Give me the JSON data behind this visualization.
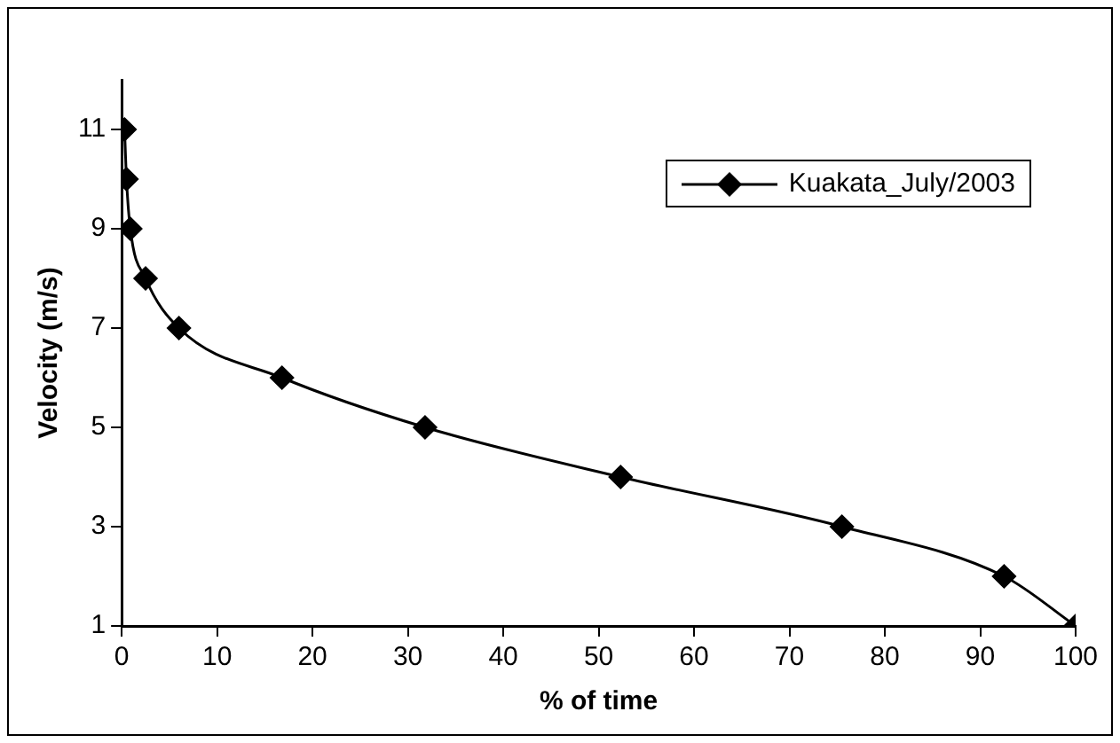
{
  "chart_data": {
    "type": "line",
    "xlabel": "% of time",
    "ylabel": "Velocity (m/s)",
    "x": [
      0.3,
      0.5,
      0.9,
      2.5,
      6,
      16.8,
      31.8,
      52.3,
      75.5,
      92.5,
      100
    ],
    "series": [
      {
        "name": "Kuakata_July/2003",
        "color": "#000000",
        "values": [
          11,
          10,
          9,
          8,
          7,
          6,
          5,
          4,
          3,
          2,
          1
        ]
      }
    ],
    "xlim": [
      0,
      100
    ],
    "xticks": [
      0,
      10,
      20,
      30,
      40,
      50,
      60,
      70,
      80,
      90,
      100
    ],
    "ylim": [
      1,
      12
    ],
    "yticks": [
      1,
      3,
      5,
      7,
      9,
      11
    ],
    "grid": false,
    "legend": "top right",
    "marker": "diamond",
    "line_style": "solid"
  }
}
